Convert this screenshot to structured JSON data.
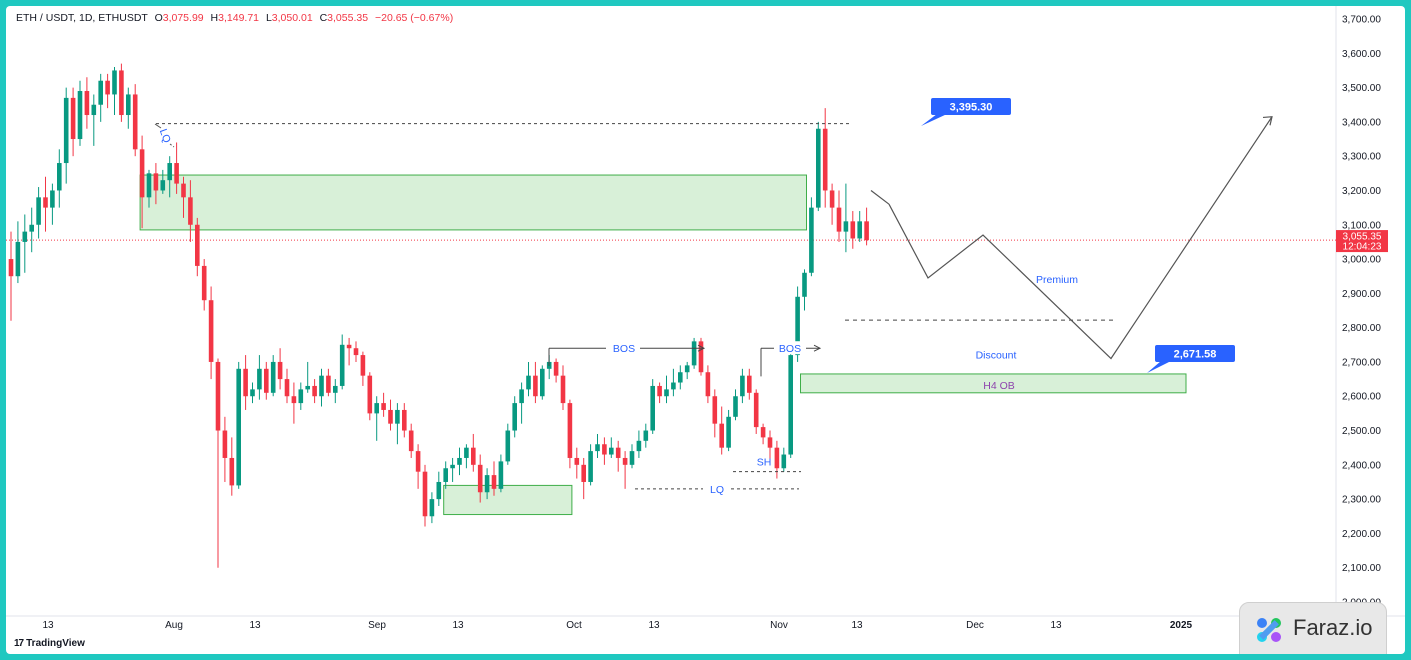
{
  "header": {
    "symbol": "ETH / USDT, 1D, ETHUSDT",
    "open_label": "O",
    "open": "3,075.99",
    "high_label": "H",
    "high": "3,149.71",
    "low_label": "L",
    "low": "3,050.01",
    "close_label": "C",
    "close": "3,055.35",
    "change": "−20.65 (−0.67%)"
  },
  "colors": {
    "up": "#089981",
    "down": "#f23645",
    "zone_stroke": "#3fae49",
    "zone_fill": "#d8f0d8",
    "label_blue": "#2962ff",
    "projection": "#555555",
    "frame": "#1fc8c0"
  },
  "price_axis": {
    "ticks": [
      "3,700.00",
      "3,600.00",
      "3,500.00",
      "3,400.00",
      "3,300.00",
      "3,200.00",
      "3,100.00",
      "3,000.00",
      "2,900.00",
      "2,800.00",
      "2,700.00",
      "2,600.00",
      "2,500.00",
      "2,400.00",
      "2,300.00",
      "2,200.00",
      "2,100.00",
      "2,000.00"
    ],
    "last_price": "3,055.35",
    "countdown": "12:04:23"
  },
  "time_axis": {
    "ticks": [
      "13",
      "Aug",
      "13",
      "Sep",
      "13",
      "Oct",
      "13",
      "Nov",
      "13",
      "Dec",
      "13",
      "2025"
    ]
  },
  "annotations": {
    "lq_top": "LQ",
    "bos_1": "BOS",
    "bos_2": "BOS",
    "sh": "SH",
    "lq_bottom": "LQ",
    "premium": "Premium",
    "discount": "Discount",
    "h4_ob": "H4 OB",
    "target_high": "3,395.30",
    "target_low": "2,671.58"
  },
  "chart_data": {
    "type": "candlestick",
    "title": "ETH / USDT, 1D, ETHUSDT",
    "ylim": [
      2000,
      3700
    ],
    "y_ticks": [
      2000,
      2100,
      2200,
      2300,
      2400,
      2500,
      2600,
      2700,
      2800,
      2900,
      3000,
      3100,
      3200,
      3300,
      3400,
      3500,
      3600,
      3700
    ],
    "ohlc": [
      [
        3000,
        3080,
        2820,
        2950
      ],
      [
        2950,
        3110,
        2930,
        3050
      ],
      [
        3050,
        3130,
        2960,
        3080
      ],
      [
        3080,
        3150,
        3020,
        3100
      ],
      [
        3100,
        3210,
        3060,
        3180
      ],
      [
        3180,
        3240,
        3080,
        3150
      ],
      [
        3150,
        3220,
        3100,
        3200
      ],
      [
        3200,
        3320,
        3150,
        3280
      ],
      [
        3280,
        3500,
        3220,
        3470
      ],
      [
        3470,
        3500,
        3300,
        3350
      ],
      [
        3350,
        3520,
        3330,
        3490
      ],
      [
        3490,
        3530,
        3380,
        3420
      ],
      [
        3420,
        3480,
        3330,
        3450
      ],
      [
        3450,
        3540,
        3400,
        3520
      ],
      [
        3520,
        3540,
        3440,
        3480
      ],
      [
        3480,
        3560,
        3420,
        3550
      ],
      [
        3550,
        3570,
        3400,
        3420
      ],
      [
        3420,
        3500,
        3380,
        3480
      ],
      [
        3480,
        3510,
        3300,
        3320
      ],
      [
        3320,
        3360,
        3090,
        3180
      ],
      [
        3180,
        3260,
        3150,
        3250
      ],
      [
        3250,
        3280,
        3160,
        3200
      ],
      [
        3200,
        3260,
        3190,
        3230
      ],
      [
        3230,
        3300,
        3180,
        3280
      ],
      [
        3280,
        3340,
        3190,
        3220
      ],
      [
        3220,
        3240,
        3120,
        3180
      ],
      [
        3180,
        3230,
        3050,
        3100
      ],
      [
        3100,
        3120,
        2950,
        2980
      ],
      [
        2980,
        3000,
        2850,
        2880
      ],
      [
        2880,
        2920,
        2650,
        2700
      ],
      [
        2700,
        2710,
        2100,
        2500
      ],
      [
        2500,
        2540,
        2350,
        2420
      ],
      [
        2420,
        2480,
        2310,
        2340
      ],
      [
        2340,
        2700,
        2330,
        2680
      ],
      [
        2680,
        2720,
        2560,
        2600
      ],
      [
        2600,
        2640,
        2580,
        2620
      ],
      [
        2620,
        2720,
        2590,
        2680
      ],
      [
        2680,
        2700,
        2590,
        2610
      ],
      [
        2610,
        2720,
        2600,
        2700
      ],
      [
        2700,
        2740,
        2620,
        2650
      ],
      [
        2650,
        2680,
        2580,
        2600
      ],
      [
        2600,
        2640,
        2520,
        2580
      ],
      [
        2580,
        2640,
        2560,
        2620
      ],
      [
        2620,
        2700,
        2610,
        2630
      ],
      [
        2630,
        2650,
        2580,
        2600
      ],
      [
        2600,
        2680,
        2570,
        2660
      ],
      [
        2660,
        2680,
        2600,
        2610
      ],
      [
        2610,
        2650,
        2580,
        2630
      ],
      [
        2630,
        2780,
        2620,
        2750
      ],
      [
        2750,
        2770,
        2690,
        2740
      ],
      [
        2740,
        2760,
        2700,
        2720
      ],
      [
        2720,
        2730,
        2630,
        2660
      ],
      [
        2660,
        2670,
        2530,
        2550
      ],
      [
        2550,
        2600,
        2470,
        2580
      ],
      [
        2580,
        2610,
        2540,
        2560
      ],
      [
        2560,
        2590,
        2500,
        2520
      ],
      [
        2520,
        2580,
        2460,
        2560
      ],
      [
        2560,
        2580,
        2480,
        2500
      ],
      [
        2500,
        2520,
        2420,
        2440
      ],
      [
        2440,
        2460,
        2330,
        2380
      ],
      [
        2380,
        2400,
        2220,
        2250
      ],
      [
        2250,
        2320,
        2230,
        2300
      ],
      [
        2300,
        2380,
        2280,
        2350
      ],
      [
        2350,
        2410,
        2330,
        2390
      ],
      [
        2390,
        2420,
        2350,
        2400
      ],
      [
        2400,
        2450,
        2370,
        2420
      ],
      [
        2420,
        2460,
        2390,
        2450
      ],
      [
        2450,
        2490,
        2380,
        2400
      ],
      [
        2400,
        2430,
        2290,
        2320
      ],
      [
        2320,
        2390,
        2300,
        2370
      ],
      [
        2370,
        2410,
        2310,
        2330
      ],
      [
        2330,
        2430,
        2320,
        2410
      ],
      [
        2410,
        2520,
        2400,
        2500
      ],
      [
        2500,
        2600,
        2480,
        2580
      ],
      [
        2580,
        2640,
        2520,
        2620
      ],
      [
        2620,
        2700,
        2600,
        2660
      ],
      [
        2660,
        2700,
        2580,
        2600
      ],
      [
        2600,
        2690,
        2590,
        2680
      ],
      [
        2680,
        2720,
        2650,
        2700
      ],
      [
        2700,
        2710,
        2640,
        2660
      ],
      [
        2660,
        2690,
        2560,
        2580
      ],
      [
        2580,
        2590,
        2390,
        2420
      ],
      [
        2420,
        2450,
        2360,
        2400
      ],
      [
        2400,
        2420,
        2300,
        2350
      ],
      [
        2350,
        2460,
        2340,
        2440
      ],
      [
        2440,
        2490,
        2420,
        2460
      ],
      [
        2460,
        2480,
        2400,
        2430
      ],
      [
        2430,
        2480,
        2420,
        2450
      ],
      [
        2450,
        2470,
        2380,
        2420
      ],
      [
        2420,
        2440,
        2330,
        2400
      ],
      [
        2400,
        2460,
        2390,
        2440
      ],
      [
        2440,
        2500,
        2420,
        2470
      ],
      [
        2470,
        2520,
        2450,
        2500
      ],
      [
        2500,
        2650,
        2490,
        2630
      ],
      [
        2630,
        2640,
        2580,
        2600
      ],
      [
        2600,
        2660,
        2580,
        2620
      ],
      [
        2620,
        2680,
        2600,
        2640
      ],
      [
        2640,
        2690,
        2620,
        2670
      ],
      [
        2670,
        2700,
        2650,
        2690
      ],
      [
        2690,
        2770,
        2680,
        2760
      ],
      [
        2760,
        2770,
        2660,
        2670
      ],
      [
        2670,
        2690,
        2580,
        2600
      ],
      [
        2600,
        2620,
        2480,
        2520
      ],
      [
        2520,
        2570,
        2430,
        2450
      ],
      [
        2450,
        2560,
        2440,
        2540
      ],
      [
        2540,
        2620,
        2530,
        2600
      ],
      [
        2600,
        2680,
        2580,
        2660
      ],
      [
        2660,
        2680,
        2590,
        2610
      ],
      [
        2610,
        2620,
        2490,
        2510
      ],
      [
        2510,
        2520,
        2460,
        2480
      ],
      [
        2480,
        2500,
        2400,
        2450
      ],
      [
        2450,
        2470,
        2360,
        2390
      ],
      [
        2390,
        2450,
        2380,
        2430
      ],
      [
        2430,
        2740,
        2420,
        2720
      ],
      [
        2720,
        2920,
        2700,
        2890
      ],
      [
        2890,
        2970,
        2850,
        2960
      ],
      [
        2960,
        3180,
        2950,
        3150
      ],
      [
        3150,
        3400,
        3140,
        3380
      ],
      [
        3380,
        3440,
        3150,
        3200
      ],
      [
        3200,
        3220,
        3100,
        3150
      ],
      [
        3150,
        3200,
        3050,
        3080
      ],
      [
        3080,
        3220,
        3020,
        3110
      ],
      [
        3110,
        3140,
        3030,
        3060
      ],
      [
        3060,
        3140,
        3050,
        3110
      ],
      [
        3110,
        3150,
        3040,
        3055
      ]
    ],
    "zones": [
      {
        "label": "",
        "x_from_candle": 19,
        "x_to_candle": 115,
        "y_low": 3085,
        "y_high": 3245
      },
      {
        "label": "",
        "x_from_candle": 63,
        "x_to_candle": 81,
        "y_low": 2255,
        "y_high": 2340
      },
      {
        "label": "H4 OB",
        "x_from_candle": 115,
        "to_date_after": "2025",
        "y_low": 2610,
        "y_high": 2665
      }
    ],
    "projection_path": [
      [
        3055,
        "now"
      ],
      [
        2945,
        "late Nov"
      ],
      [
        3070,
        "Dec 1"
      ],
      [
        2710,
        "Dec 20"
      ],
      [
        3415,
        "mid Jan 2025"
      ]
    ],
    "levels": [
      {
        "price": 3395.3,
        "label": "3,395.30"
      },
      {
        "price": 2671.58,
        "label": "2,671.58"
      },
      {
        "price": 2820,
        "style": "dashed"
      }
    ],
    "last_price": 3055.35
  }
}
